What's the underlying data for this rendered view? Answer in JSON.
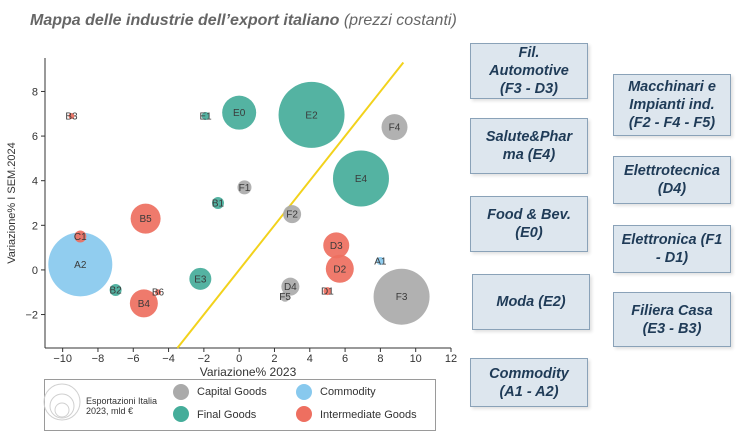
{
  "title": {
    "main": "Mappa delle industrie dell’export italiano",
    "sub": "(prezzi costanti)"
  },
  "chart_data": {
    "type": "scatter",
    "title": "Mappa delle industrie dell’export italiano (prezzi costanti)",
    "xlabel": "Variazione% 2023",
    "ylabel": "Variazione% I SEM.2024",
    "xlim": [
      -11,
      12
    ],
    "ylim": [
      -3.5,
      9.5
    ],
    "xticks": [
      -10,
      -8,
      -6,
      -4,
      -2,
      0,
      2,
      4,
      6,
      8,
      10,
      12
    ],
    "yticks": [
      -2,
      0,
      2,
      4,
      6,
      8
    ],
    "grid": false,
    "diagonal": {
      "x": [
        -3.5,
        9.3
      ],
      "y": [
        -3.5,
        9.3
      ],
      "color": "#f2d21c"
    },
    "colors": {
      "Capital Goods": "#aaaaaa",
      "Commodity": "#88c9ee",
      "Final Goods": "#45ad9a",
      "Intermediate Goods": "#ee6f60"
    },
    "size_legend_label": "Esportazioni Italia 2023, mld €",
    "series": [
      {
        "name": "Capital Goods",
        "points": [
          {
            "label": "F1",
            "x": 0.3,
            "y": 3.7,
            "r": 7
          },
          {
            "label": "F2",
            "x": 3.0,
            "y": 2.5,
            "r": 9
          },
          {
            "label": "F4",
            "x": 8.8,
            "y": 6.4,
            "r": 13
          },
          {
            "label": "F3",
            "x": 9.2,
            "y": -1.2,
            "r": 28
          },
          {
            "label": "D4",
            "x": 2.9,
            "y": -0.75,
            "r": 9
          },
          {
            "label": "F5",
            "x": 2.6,
            "y": -1.2,
            "r": 5
          }
        ]
      },
      {
        "name": "Commodity",
        "points": [
          {
            "label": "A2",
            "x": -9.0,
            "y": 0.25,
            "r": 32
          },
          {
            "label": "A1",
            "x": 8.0,
            "y": 0.4,
            "r": 4
          }
        ]
      },
      {
        "name": "Final Goods",
        "points": [
          {
            "label": "E0",
            "x": 0.0,
            "y": 7.05,
            "r": 17
          },
          {
            "label": "E2",
            "x": 4.1,
            "y": 6.95,
            "r": 33
          },
          {
            "label": "E4",
            "x": 6.9,
            "y": 4.1,
            "r": 28
          },
          {
            "label": "E1",
            "x": -1.9,
            "y": 6.9,
            "r": 4
          },
          {
            "label": "B1",
            "x": -1.2,
            "y": 3.0,
            "r": 6
          },
          {
            "label": "E3",
            "x": -2.2,
            "y": -0.4,
            "r": 11
          },
          {
            "label": "B2",
            "x": -7.0,
            "y": -0.9,
            "r": 6
          }
        ]
      },
      {
        "name": "Intermediate Goods",
        "points": [
          {
            "label": "B3",
            "x": -9.5,
            "y": 6.9,
            "r": 3
          },
          {
            "label": "B5",
            "x": -5.3,
            "y": 2.3,
            "r": 15
          },
          {
            "label": "C1",
            "x": -9.0,
            "y": 1.5,
            "r": 6
          },
          {
            "label": "D3",
            "x": 5.5,
            "y": 1.1,
            "r": 13
          },
          {
            "label": "D2",
            "x": 5.7,
            "y": 0.05,
            "r": 14
          },
          {
            "label": "D1",
            "x": 5.0,
            "y": -0.95,
            "r": 4
          },
          {
            "label": "B6",
            "x": -4.6,
            "y": -1.0,
            "r": 3
          },
          {
            "label": "B4",
            "x": -5.4,
            "y": -1.5,
            "r": 14
          }
        ]
      }
    ]
  },
  "boxes": {
    "fil_automotive": "Fil. Automotive (F3 - D3)",
    "macchinari": "Macchinari e Impianti ind. (F2 - F4 - F5)",
    "salute": "Salute&Phar ma (E4)",
    "elettrotecnica": "Elettrotecnica (D4)",
    "food": "Food & Bev. (E0)",
    "elettronica": "Elettronica (F1 - D1)",
    "moda": "Moda (E2)",
    "filiera_casa": "Filiera Casa (E3 - B3)",
    "commodity": "Commodity (A1 - A2)"
  },
  "legend": {
    "capital": "Capital Goods",
    "commodity": "Commodity",
    "final": "Final Goods",
    "intermediate": "Intermediate Goods",
    "size": "Esportazioni Italia 2023, mld €"
  }
}
